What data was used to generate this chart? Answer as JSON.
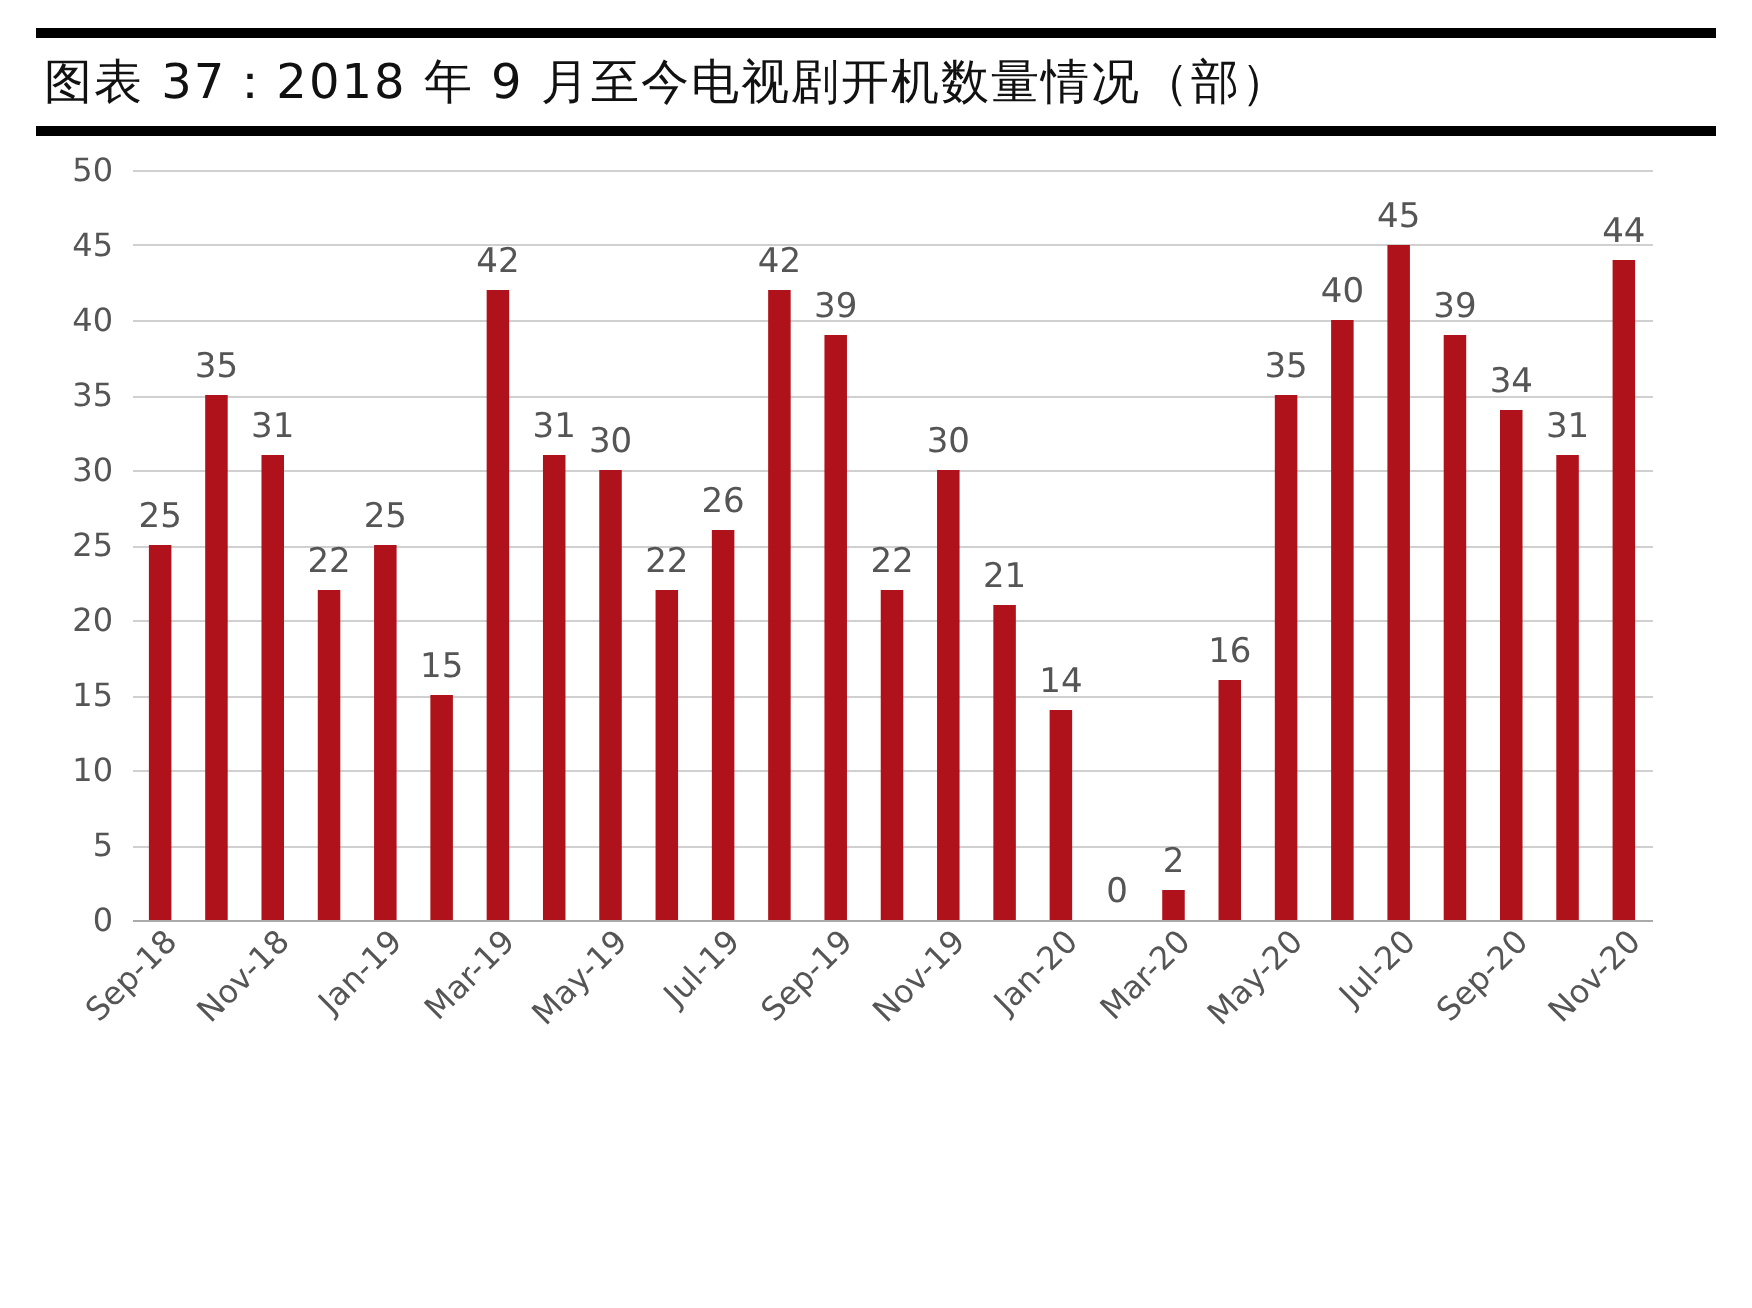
{
  "chart_data": {
    "type": "bar",
    "title": "图表 37：2018 年 9 月至今电视剧开机数量情况（部）",
    "categories": [
      "Sep-18",
      null,
      "Nov-18",
      null,
      "Jan-19",
      null,
      "Mar-19",
      null,
      "May-19",
      null,
      "Jul-19",
      null,
      "Sep-19",
      null,
      "Nov-19",
      null,
      "Jan-20",
      null,
      "Mar-20",
      null,
      "May-20",
      null,
      "Jul-20",
      null,
      "Sep-20",
      null,
      "Nov-20"
    ],
    "values": [
      25,
      35,
      31,
      22,
      25,
      15,
      42,
      31,
      30,
      22,
      26,
      42,
      39,
      22,
      30,
      21,
      14,
      0,
      2,
      16,
      35,
      40,
      45,
      39,
      34,
      31,
      44
    ],
    "color": "#b0121b",
    "ylim": [
      0,
      50
    ],
    "yticks": [
      0,
      5,
      10,
      15,
      20,
      25,
      30,
      35,
      40,
      45,
      50
    ],
    "grid": "y",
    "data_labels": true
  }
}
